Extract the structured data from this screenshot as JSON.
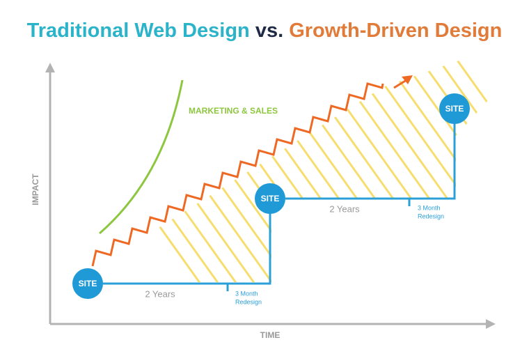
{
  "title": {
    "traditional": "Traditional Web Design",
    "versus": "vs.",
    "growth": "Growth-Driven Design"
  },
  "axes": {
    "y_label": "IMPACT",
    "x_label": "TIME"
  },
  "marketing_label": "MARKETING & SALES",
  "sites": [
    "SITE",
    "SITE",
    "SITE"
  ],
  "intervals": [
    {
      "duration": "2 Years",
      "redesign": [
        "3 Month",
        "Redesign"
      ]
    },
    {
      "duration": "2 Years",
      "redesign": [
        "3 Month",
        "Redesign"
      ]
    }
  ]
}
